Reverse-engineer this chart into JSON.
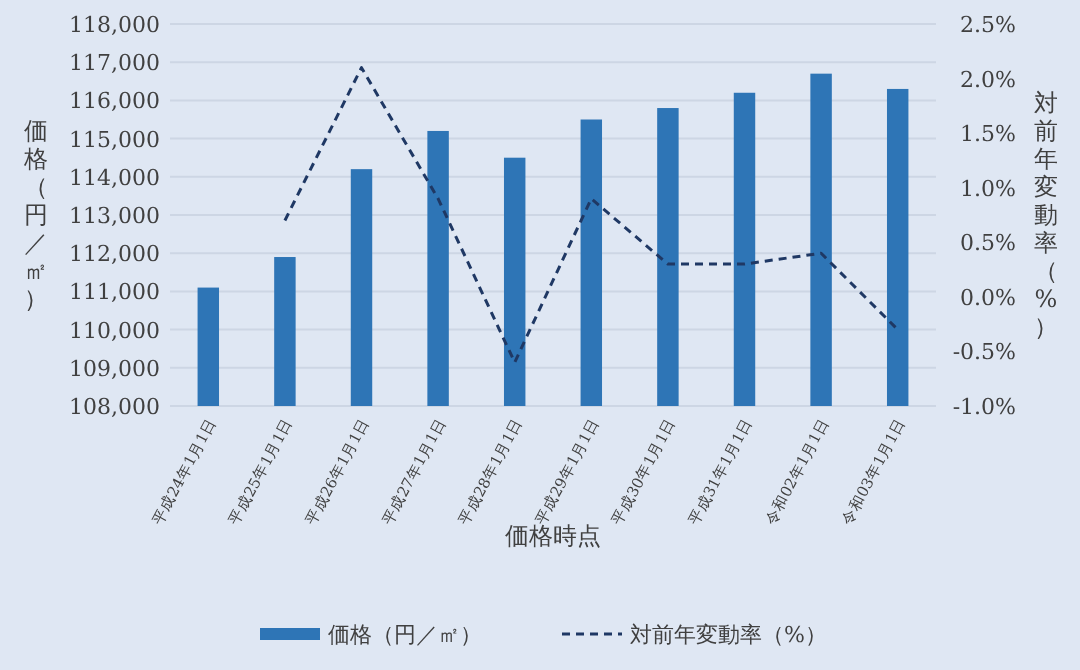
{
  "chart_data": {
    "type": "bar",
    "xlabel": "価格時点",
    "ylabel": "価格（円／㎡）",
    "y2label": "対前年変動率（%）",
    "categories": [
      "平成24年1月1日",
      "平成25年1月1日",
      "平成26年1月1日",
      "平成27年1月1日",
      "平成28年1月1日",
      "平成29年1月1日",
      "平成30年1月1日",
      "平成31年1月1日",
      "令和02年1月1日",
      "令和03年1月1日"
    ],
    "series": [
      {
        "name": "価格（円／㎡）",
        "color": "#2e75b6",
        "values": [
          111100,
          111900,
          114200,
          115200,
          114500,
          115500,
          115800,
          116200,
          116700,
          116300
        ]
      },
      {
        "name": "対前年変動率（%）",
        "type": "line",
        "axis": "y2",
        "color": "#1f3864",
        "line_style": "dashed",
        "values": [
          null,
          0.7,
          2.1,
          0.9,
          -0.6,
          0.9,
          0.3,
          0.3,
          0.4,
          -0.3
        ]
      }
    ],
    "ylim": [
      108000,
      118000
    ],
    "yticks": [
      {
        "value": 108000,
        "label": "108,000"
      },
      {
        "value": 109000,
        "label": "109,000"
      },
      {
        "value": 110000,
        "label": "110,000"
      },
      {
        "value": 111000,
        "label": "111,000"
      },
      {
        "value": 112000,
        "label": "112,000"
      },
      {
        "value": 113000,
        "label": "113,000"
      },
      {
        "value": 114000,
        "label": "114,000"
      },
      {
        "value": 115000,
        "label": "115,000"
      },
      {
        "value": 116000,
        "label": "116,000"
      },
      {
        "value": 117000,
        "label": "117,000"
      },
      {
        "value": 118000,
        "label": "118,000"
      }
    ],
    "y2lim": [
      -1.0,
      2.5
    ],
    "y2ticks": [
      {
        "value": -1.0,
        "label": "-1.0%"
      },
      {
        "value": -0.5,
        "label": "-0.5%"
      },
      {
        "value": 0.0,
        "label": "0.0%"
      },
      {
        "value": 0.5,
        "label": "0.5%"
      },
      {
        "value": 1.0,
        "label": "1.0%"
      },
      {
        "value": 1.5,
        "label": "1.5%"
      },
      {
        "value": 2.0,
        "label": "2.0%"
      },
      {
        "value": 2.5,
        "label": "2.5%"
      }
    ],
    "grid": "y",
    "legend": "bottom"
  }
}
